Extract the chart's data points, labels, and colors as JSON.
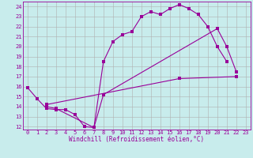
{
  "xlabel": "Windchill (Refroidissement éolien,°C)",
  "background_color": "#c8ecec",
  "line_color": "#990099",
  "grid_color": "#b0b0b0",
  "xmin": -0.5,
  "xmax": 23.5,
  "ymin": 11.7,
  "ymax": 24.5,
  "curve1_x": [
    0,
    1,
    2,
    3,
    4,
    5,
    6,
    7,
    8,
    9,
    10,
    11,
    12,
    13,
    14,
    15,
    16,
    17,
    18,
    19,
    20,
    21
  ],
  "curve1_y": [
    15.9,
    14.8,
    13.8,
    13.7,
    13.7,
    13.2,
    12.0,
    11.9,
    18.5,
    20.5,
    21.2,
    21.5,
    23.0,
    23.5,
    23.2,
    23.8,
    24.2,
    23.8,
    23.2,
    22.0,
    20.0,
    18.5
  ],
  "curve2_x": [
    2,
    3,
    7,
    8,
    20,
    21,
    22
  ],
  "curve2_y": [
    14.0,
    13.8,
    11.9,
    15.2,
    21.8,
    20.0,
    17.5
  ],
  "curve3_x": [
    2,
    16,
    22
  ],
  "curve3_y": [
    14.2,
    16.8,
    17.0
  ],
  "yticks": [
    12,
    13,
    14,
    15,
    16,
    17,
    18,
    19,
    20,
    21,
    22,
    23,
    24
  ],
  "xticks": [
    0,
    1,
    2,
    3,
    4,
    5,
    6,
    7,
    8,
    9,
    10,
    11,
    12,
    13,
    14,
    15,
    16,
    17,
    18,
    19,
    20,
    21,
    22,
    23
  ],
  "tick_fontsize": 5.0,
  "xlabel_fontsize": 5.5
}
